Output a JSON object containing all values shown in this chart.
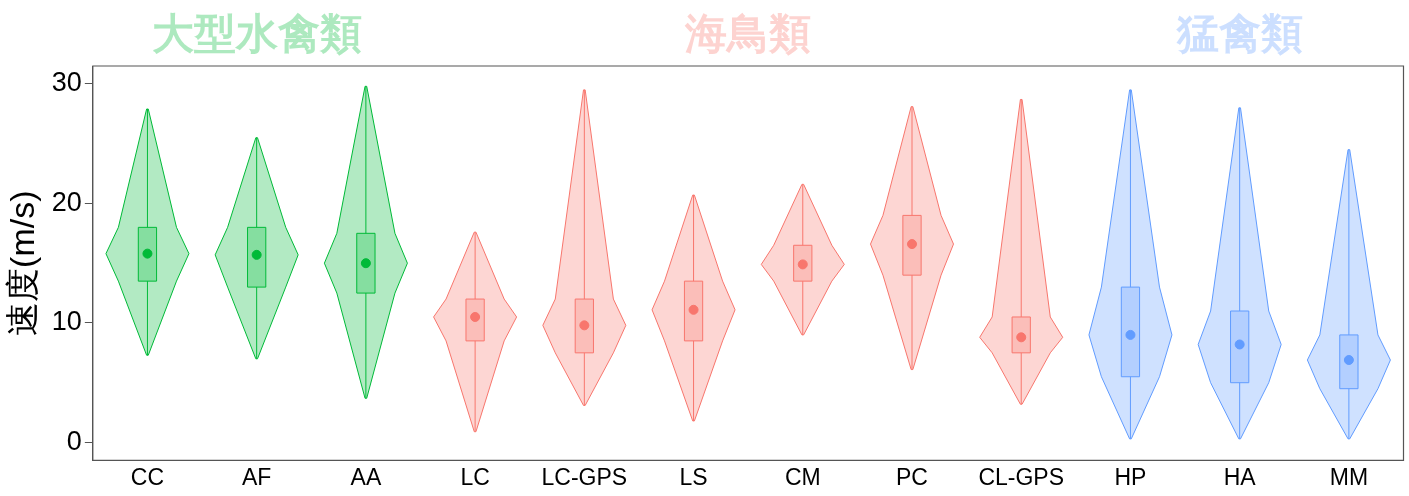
{
  "chart_data": {
    "type": "box",
    "ylabel": "速度(m/s)",
    "categories": [
      "CC",
      "AF",
      "AA",
      "LC",
      "LC-GPS",
      "LS",
      "CM",
      "PC",
      "CL-GPS",
      "HP",
      "HA",
      "MM"
    ],
    "ylim": [
      -1.5,
      31.5
    ],
    "yticks": [
      0,
      10,
      20,
      30
    ],
    "grid": false,
    "legend": false,
    "marker": "circle",
    "series": [
      {
        "name": "大型水禽類",
        "color": "#00ba38",
        "boxes": [
          {
            "low": 7.3,
            "q1": 13.5,
            "median": 15.8,
            "q3": 18,
            "high": 27.9
          },
          {
            "low": 7.0,
            "q1": 13,
            "median": 15.7,
            "q3": 18,
            "high": 25.5
          },
          {
            "low": 3.7,
            "q1": 12.5,
            "median": 15.0,
            "q3": 17.5,
            "high": 29.8
          },
          null,
          null,
          null,
          null,
          null,
          null,
          null,
          null,
          null
        ]
      },
      {
        "name": "海鳥類",
        "color": "#f8766d",
        "boxes": [
          null,
          null,
          null,
          {
            "low": 0.9,
            "q1": 8.5,
            "median": 10.5,
            "q3": 12,
            "high": 17.6
          },
          {
            "low": 3.1,
            "q1": 7.5,
            "median": 9.8,
            "q3": 12,
            "high": 29.5
          },
          {
            "low": 1.8,
            "q1": 8.5,
            "median": 11.1,
            "q3": 13.5,
            "high": 20.7
          },
          {
            "low": 9.0,
            "q1": 13.5,
            "median": 14.9,
            "q3": 16.5,
            "high": 21.6
          },
          {
            "low": 6.1,
            "q1": 14,
            "median": 16.6,
            "q3": 19,
            "high": 28.1
          },
          {
            "low": 3.2,
            "q1": 7.5,
            "median": 8.8,
            "q3": 10.5,
            "high": 28.7
          },
          null,
          null,
          null
        ]
      },
      {
        "name": "猛禽類",
        "color": "#619cff",
        "boxes": [
          null,
          null,
          null,
          null,
          null,
          null,
          null,
          null,
          null,
          {
            "low": 0.3,
            "q1": 5.5,
            "median": 9.0,
            "q3": 13,
            "high": 29.5
          },
          {
            "low": 0.3,
            "q1": 5,
            "median": 8.2,
            "q3": 11,
            "high": 28.0
          },
          {
            "low": 0.3,
            "q1": 4.5,
            "median": 6.9,
            "q3": 9,
            "high": 24.5
          }
        ]
      }
    ]
  }
}
